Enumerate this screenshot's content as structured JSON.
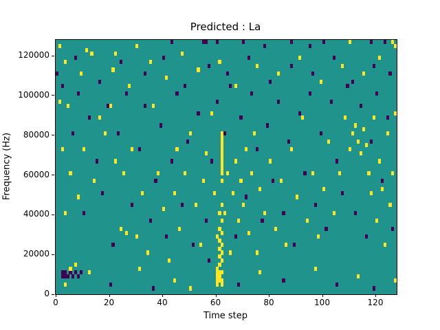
{
  "chart_data": {
    "type": "heatmap",
    "title": "Predicted : La",
    "xlabel": "Time step",
    "ylabel": "Frequency (Hz)",
    "x_range": [
      0,
      128
    ],
    "y_range": [
      0,
      128000
    ],
    "x_ticks": [
      0,
      20,
      40,
      60,
      80,
      100,
      120
    ],
    "y_ticks": [
      0,
      20000,
      40000,
      60000,
      80000,
      100000,
      120000
    ],
    "grid_cols": 128,
    "grid_rows": 64,
    "cell_height_hz": 2000,
    "grid": false,
    "legend": "none",
    "value_colors": {
      "background": "#20938d",
      "high": "#fde725",
      "low": "#440154"
    },
    "cells": [
      [
        60,
        2,
        1
      ],
      [
        60,
        3,
        1
      ],
      [
        60,
        4,
        1
      ],
      [
        60,
        5,
        1
      ],
      [
        60,
        6,
        1
      ],
      [
        60,
        14,
        1
      ],
      [
        61,
        3,
        1
      ],
      [
        61,
        4,
        1
      ],
      [
        61,
        5,
        1
      ],
      [
        61,
        7,
        1
      ],
      [
        61,
        9,
        1
      ],
      [
        61,
        11,
        1
      ],
      [
        61,
        13,
        1
      ],
      [
        61,
        16,
        1
      ],
      [
        61,
        20,
        1
      ],
      [
        62,
        2,
        1
      ],
      [
        62,
        3,
        1
      ],
      [
        62,
        5,
        1
      ],
      [
        62,
        8,
        1
      ],
      [
        62,
        10,
        1
      ],
      [
        62,
        12,
        1
      ],
      [
        62,
        15,
        1
      ],
      [
        62,
        18,
        1
      ],
      [
        62,
        22,
        1
      ],
      [
        62,
        28,
        1
      ],
      [
        62,
        30,
        1
      ],
      [
        62,
        31,
        1
      ],
      [
        62,
        32,
        1
      ],
      [
        62,
        33,
        1
      ],
      [
        62,
        34,
        1
      ],
      [
        62,
        35,
        1
      ],
      [
        62,
        36,
        1
      ],
      [
        62,
        37,
        1
      ],
      [
        62,
        38,
        1
      ],
      [
        62,
        39,
        1
      ],
      [
        62,
        40,
        1
      ],
      [
        2,
        4,
        0
      ],
      [
        2,
        5,
        0
      ],
      [
        3,
        4,
        0
      ],
      [
        3,
        5,
        0
      ],
      [
        4,
        4,
        0
      ],
      [
        5,
        5,
        0
      ],
      [
        6,
        4,
        0
      ],
      [
        7,
        5,
        0
      ],
      [
        8,
        4,
        0
      ],
      [
        9,
        5,
        0
      ],
      [
        3,
        2,
        1
      ],
      [
        5,
        6,
        1
      ],
      [
        7,
        7,
        1
      ],
      [
        12,
        5,
        1
      ],
      [
        1,
        62,
        1
      ],
      [
        11,
        61,
        1
      ],
      [
        22,
        60,
        1
      ],
      [
        30,
        62,
        1
      ],
      [
        43,
        63,
        0
      ],
      [
        55,
        63,
        0
      ],
      [
        56,
        63,
        0
      ],
      [
        60,
        63,
        0
      ],
      [
        70,
        63,
        0
      ],
      [
        78,
        62,
        0
      ],
      [
        88,
        63,
        0
      ],
      [
        95,
        62,
        0
      ],
      [
        100,
        63,
        0
      ],
      [
        110,
        63,
        1
      ],
      [
        118,
        63,
        0
      ],
      [
        123,
        63,
        0
      ],
      [
        126,
        63,
        1
      ],
      [
        127,
        62,
        1
      ],
      [
        1,
        48,
        1
      ],
      [
        2,
        36,
        1
      ],
      [
        3,
        20,
        1
      ],
      [
        4,
        47,
        1
      ],
      [
        5,
        30,
        1
      ],
      [
        8,
        24,
        1
      ],
      [
        10,
        36,
        1
      ],
      [
        14,
        28,
        1
      ],
      [
        16,
        44,
        1
      ],
      [
        18,
        40,
        1
      ],
      [
        20,
        47,
        1
      ],
      [
        22,
        33,
        1
      ],
      [
        24,
        16,
        1
      ],
      [
        25,
        30,
        1
      ],
      [
        26,
        15,
        1
      ],
      [
        28,
        36,
        1
      ],
      [
        30,
        14,
        1
      ],
      [
        32,
        25,
        1
      ],
      [
        34,
        10,
        1
      ],
      [
        36,
        47,
        1
      ],
      [
        38,
        30,
        1
      ],
      [
        40,
        21,
        1
      ],
      [
        42,
        8,
        1
      ],
      [
        44,
        25,
        1
      ],
      [
        45,
        36,
        1
      ],
      [
        46,
        16,
        1
      ],
      [
        48,
        30,
        1
      ],
      [
        50,
        40,
        1
      ],
      [
        52,
        22,
        1
      ],
      [
        54,
        12,
        1
      ],
      [
        55,
        28,
        1
      ],
      [
        56,
        35,
        1
      ],
      [
        58,
        45,
        1
      ],
      [
        59,
        25,
        1
      ],
      [
        63,
        20,
        1
      ],
      [
        64,
        30,
        1
      ],
      [
        65,
        10,
        1
      ],
      [
        66,
        25,
        1
      ],
      [
        67,
        33,
        1
      ],
      [
        68,
        18,
        1
      ],
      [
        69,
        28,
        1
      ],
      [
        70,
        22,
        1
      ],
      [
        71,
        36,
        1
      ],
      [
        72,
        15,
        1
      ],
      [
        73,
        30,
        1
      ],
      [
        74,
        40,
        1
      ],
      [
        75,
        10,
        1
      ],
      [
        76,
        26,
        1
      ],
      [
        78,
        20,
        1
      ],
      [
        80,
        33,
        1
      ],
      [
        82,
        16,
        1
      ],
      [
        84,
        28,
        1
      ],
      [
        86,
        12,
        1
      ],
      [
        88,
        36,
        1
      ],
      [
        90,
        24,
        1
      ],
      [
        92,
        44,
        1
      ],
      [
        94,
        18,
        1
      ],
      [
        96,
        30,
        1
      ],
      [
        98,
        14,
        1
      ],
      [
        100,
        26,
        1
      ],
      [
        102,
        38,
        1
      ],
      [
        104,
        20,
        1
      ],
      [
        106,
        30,
        1
      ],
      [
        108,
        44,
        1
      ],
      [
        110,
        36,
        1
      ],
      [
        111,
        40,
        1
      ],
      [
        112,
        42,
        1
      ],
      [
        113,
        38,
        1
      ],
      [
        114,
        35,
        1
      ],
      [
        115,
        41,
        1
      ],
      [
        116,
        37,
        1
      ],
      [
        117,
        30,
        1
      ],
      [
        118,
        25,
        1
      ],
      [
        119,
        44,
        1
      ],
      [
        120,
        18,
        1
      ],
      [
        121,
        33,
        1
      ],
      [
        122,
        26,
        1
      ],
      [
        123,
        12,
        1
      ],
      [
        124,
        40,
        1
      ],
      [
        125,
        22,
        1
      ],
      [
        126,
        30,
        1
      ],
      [
        127,
        45,
        1
      ],
      [
        0,
        55,
        0
      ],
      [
        2,
        52,
        0
      ],
      [
        6,
        40,
        0
      ],
      [
        8,
        50,
        0
      ],
      [
        10,
        20,
        0
      ],
      [
        12,
        44,
        0
      ],
      [
        15,
        33,
        0
      ],
      [
        17,
        25,
        0
      ],
      [
        19,
        47,
        0
      ],
      [
        21,
        12,
        0
      ],
      [
        23,
        40,
        0
      ],
      [
        26,
        50,
        0
      ],
      [
        28,
        22,
        0
      ],
      [
        31,
        36,
        0
      ],
      [
        33,
        47,
        0
      ],
      [
        35,
        18,
        0
      ],
      [
        37,
        28,
        0
      ],
      [
        39,
        42,
        0
      ],
      [
        41,
        14,
        0
      ],
      [
        43,
        33,
        0
      ],
      [
        45,
        50,
        0
      ],
      [
        47,
        22,
        0
      ],
      [
        49,
        38,
        0
      ],
      [
        51,
        12,
        0
      ],
      [
        53,
        45,
        0
      ],
      [
        56,
        18,
        0
      ],
      [
        58,
        33,
        0
      ],
      [
        60,
        48,
        0
      ],
      [
        63,
        40,
        0
      ],
      [
        65,
        52,
        0
      ],
      [
        67,
        14,
        0
      ],
      [
        69,
        44,
        0
      ],
      [
        71,
        24,
        0
      ],
      [
        73,
        50,
        0
      ],
      [
        75,
        36,
        0
      ],
      [
        77,
        18,
        0
      ],
      [
        79,
        42,
        0
      ],
      [
        81,
        28,
        0
      ],
      [
        83,
        48,
        0
      ],
      [
        85,
        20,
        0
      ],
      [
        87,
        38,
        0
      ],
      [
        89,
        12,
        0
      ],
      [
        91,
        45,
        0
      ],
      [
        93,
        30,
        0
      ],
      [
        95,
        50,
        0
      ],
      [
        97,
        22,
        0
      ],
      [
        99,
        40,
        0
      ],
      [
        101,
        16,
        0
      ],
      [
        103,
        48,
        0
      ],
      [
        105,
        33,
        0
      ],
      [
        107,
        25,
        0
      ],
      [
        109,
        52,
        0
      ],
      [
        112,
        20,
        0
      ],
      [
        114,
        47,
        0
      ],
      [
        116,
        14,
        0
      ],
      [
        118,
        38,
        0
      ],
      [
        120,
        50,
        0
      ],
      [
        122,
        28,
        0
      ],
      [
        124,
        44,
        0
      ],
      [
        126,
        16,
        0
      ],
      [
        3,
        58,
        1
      ],
      [
        9,
        55,
        1
      ],
      [
        13,
        60,
        1
      ],
      [
        21,
        56,
        1
      ],
      [
        27,
        52,
        1
      ],
      [
        35,
        58,
        1
      ],
      [
        41,
        54,
        1
      ],
      [
        47,
        60,
        1
      ],
      [
        53,
        56,
        1
      ],
      [
        61,
        58,
        1
      ],
      [
        67,
        52,
        1
      ],
      [
        75,
        57,
        1
      ],
      [
        83,
        55,
        1
      ],
      [
        91,
        59,
        1
      ],
      [
        99,
        53,
        1
      ],
      [
        107,
        57,
        1
      ],
      [
        115,
        55,
        1
      ],
      [
        121,
        59,
        1
      ],
      [
        7,
        59,
        0
      ],
      [
        16,
        53,
        0
      ],
      [
        24,
        58,
        0
      ],
      [
        33,
        55,
        0
      ],
      [
        40,
        59,
        0
      ],
      [
        48,
        52,
        0
      ],
      [
        57,
        57,
        0
      ],
      [
        64,
        55,
        0
      ],
      [
        72,
        59,
        0
      ],
      [
        80,
        53,
        0
      ],
      [
        88,
        57,
        0
      ],
      [
        96,
        55,
        0
      ],
      [
        104,
        59,
        0
      ],
      [
        111,
        53,
        0
      ],
      [
        119,
        57,
        0
      ],
      [
        125,
        55,
        0
      ],
      [
        20,
        2,
        0
      ],
      [
        36,
        1,
        0
      ],
      [
        44,
        3,
        1
      ],
      [
        50,
        1,
        1
      ],
      [
        68,
        2,
        0
      ],
      [
        76,
        5,
        1
      ],
      [
        85,
        3,
        0
      ],
      [
        97,
        6,
        1
      ],
      [
        105,
        2,
        0
      ],
      [
        113,
        4,
        1
      ],
      [
        119,
        1,
        0
      ],
      [
        127,
        3,
        1
      ],
      [
        31,
        6,
        1
      ],
      [
        57,
        8,
        0
      ]
    ]
  }
}
